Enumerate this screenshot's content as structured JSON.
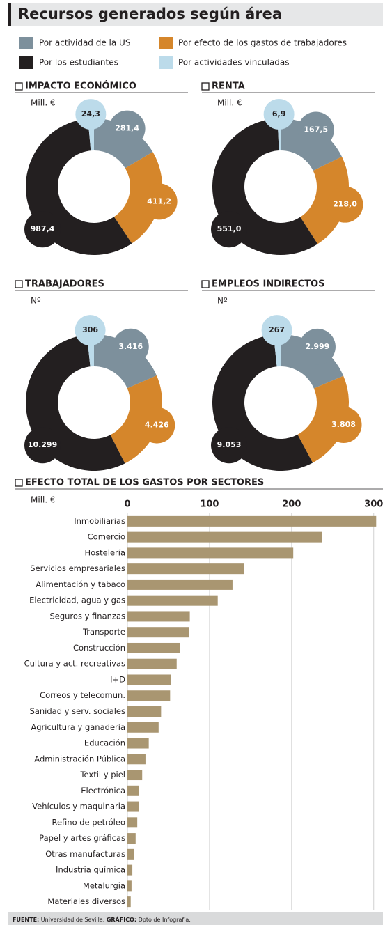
{
  "title": "Recursos generados según área",
  "legend": [
    {
      "name": "Por actividad de la US",
      "color": "#7d909c"
    },
    {
      "name": "Por efecto de los gastos de trabajadores",
      "color": "#d5862b"
    },
    {
      "name": "Por los estudiantes",
      "color": "#231f20"
    },
    {
      "name": "Por actividades vinculadas",
      "color": "#bcdbea"
    }
  ],
  "chart_data": [
    {
      "type": "donut",
      "title": "IMPACTO ECONÓMICO",
      "unit": "Mill. €",
      "values": [
        281.4,
        411.2,
        987.4,
        24.3
      ],
      "value_labels": [
        "281,4",
        "411,2",
        "987,4",
        "24,3"
      ]
    },
    {
      "type": "donut",
      "title": "RENTA",
      "unit": "Mill. €",
      "values": [
        167.5,
        218.0,
        551.0,
        6.9
      ],
      "value_labels": [
        "167,5",
        "218,0",
        "551,0",
        "6,9"
      ]
    },
    {
      "type": "donut",
      "title": "TRABAJADORES",
      "unit": "Nº",
      "values": [
        3416,
        4426,
        10299,
        306
      ],
      "value_labels": [
        "3.416",
        "4.426",
        "10.299",
        "306"
      ]
    },
    {
      "type": "donut",
      "title": "EMPLEOS INDIRECTOS",
      "unit": "Nº",
      "values": [
        2999,
        3808,
        9053,
        267
      ],
      "value_labels": [
        "2.999",
        "3.808",
        "9.053",
        "267"
      ]
    },
    {
      "type": "hbar",
      "title": "EFECTO TOTAL DE LOS GASTOS POR SECTORES",
      "unit": "Mill. €",
      "color": "#a99671",
      "categories": [
        "Inmobiliarias",
        "Comercio",
        "Hostelería",
        "Servicios empresariales",
        "Alimentación y tabaco",
        "Electricidad, agua y gas",
        "Seguros y finanzas",
        "Transporte",
        "Construcción",
        "Cultura y act. recreativas",
        "I+D",
        "Correos y telecomun.",
        "Sanidad y serv. sociales",
        "Agricultura y ganadería",
        "Educación",
        "Administración Pública",
        "Textil y piel",
        "Electrónica",
        "Vehículos y maquinaria",
        "Refino de petróleo",
        "Papel y artes gráficas",
        "Otras manufacturas",
        "Industria química",
        "Metalurgia",
        "Materiales diversos"
      ],
      "values": [
        303,
        237,
        202,
        142,
        128,
        110,
        76,
        75,
        64,
        60,
        53,
        52,
        41,
        38,
        26,
        22,
        18,
        14,
        14,
        12,
        10,
        8,
        6,
        5,
        4
      ],
      "xlim": [
        0,
        307
      ],
      "xticks": [
        0,
        100,
        200,
        300
      ],
      "grid": true
    }
  ],
  "footer": {
    "source_label": "FUENTE:",
    "source": "Universidad de Sevilla.",
    "credit_label": "GRÁFICO:",
    "credit": "Dpto de Infografía."
  }
}
